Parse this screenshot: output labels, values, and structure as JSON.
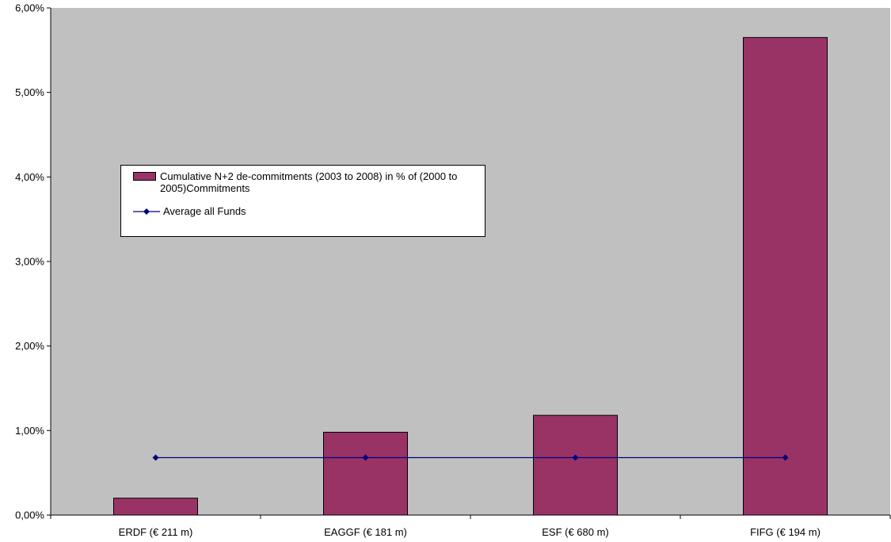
{
  "chart_data": {
    "type": "bar",
    "categories": [
      "ERDF (€ 211 m)",
      "EAGGF (€ 181 m)",
      "ESF (€ 680 m)",
      "FIFG (€ 194 m)"
    ],
    "series": [
      {
        "name": "Cumulative N+2 de-commitments (2003 to 2008) in % of (2000 to 2005)Commitments",
        "type": "bar",
        "values": [
          0.2,
          0.98,
          1.18,
          5.65
        ],
        "color": "#993366"
      },
      {
        "name": "Average all Funds",
        "type": "line",
        "values": [
          0.68,
          0.68,
          0.68,
          0.68
        ],
        "color": "#000080"
      }
    ],
    "ylim": [
      0,
      6
    ],
    "yticks": [
      "0,00%",
      "1,00%",
      "2,00%",
      "3,00%",
      "4,00%",
      "5,00%",
      "6,00%"
    ],
    "plot_background": "#c0c0c0",
    "grid": false,
    "legend_position": "upper-left-inside"
  }
}
